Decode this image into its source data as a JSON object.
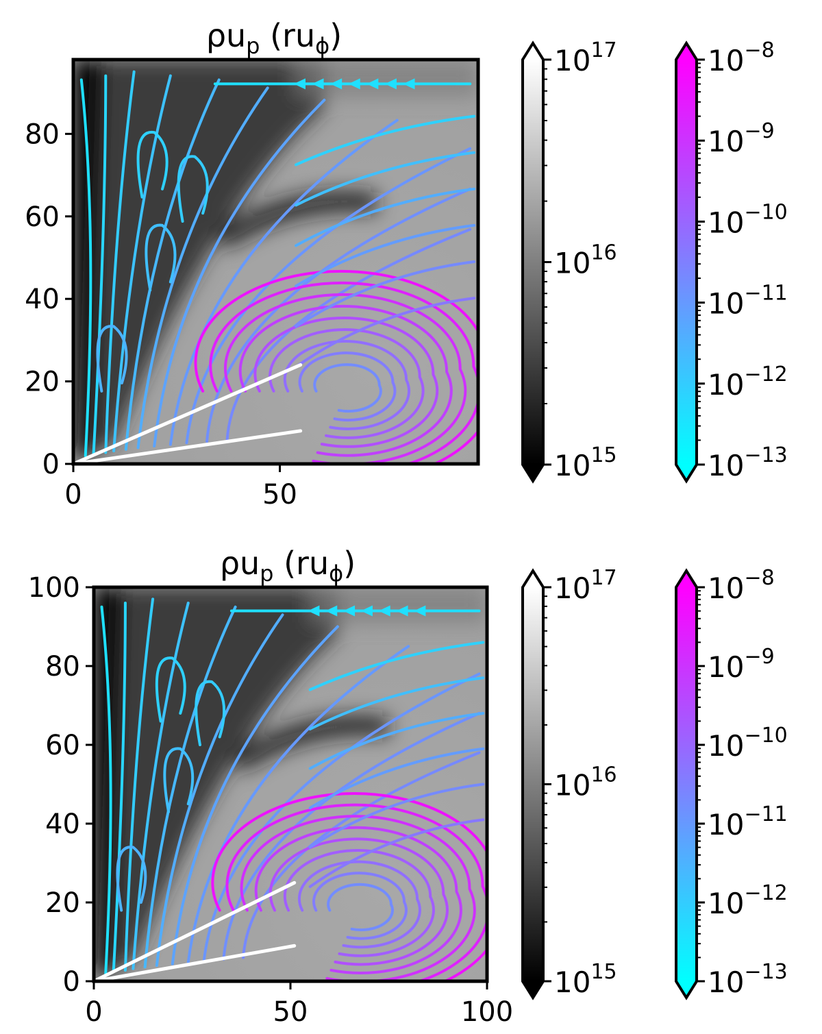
{
  "chart_data": [
    {
      "type": "heatmap",
      "title": "ρuₚ (ruᵠ)",
      "title_parts": {
        "rho_u": "ρu",
        "sub_p": "p",
        "lparen_r_u": "(ru",
        "sub_phi": "ϕ",
        "rparen": ")"
      },
      "xlabel": "",
      "ylabel": "",
      "xlim": [
        0,
        98
      ],
      "ylim": [
        0,
        98
      ],
      "xticks": [
        "0",
        "50"
      ],
      "yticks": [
        "0",
        "20",
        "40",
        "60",
        "80"
      ],
      "background_colorbar": {
        "colormap": "gray",
        "scale": "log",
        "range_exp": [
          15,
          17
        ],
        "ticks": [
          {
            "base": "10",
            "exp": "17"
          },
          {
            "base": "10",
            "exp": "16"
          },
          {
            "base": "10",
            "exp": "15"
          }
        ]
      },
      "streamline_colorbar": {
        "colormap": "cool",
        "scale": "log",
        "range_exp": [
          -13,
          -8
        ],
        "ticks": [
          {
            "base": "10",
            "exp": "−8"
          },
          {
            "base": "10",
            "exp": "−9"
          },
          {
            "base": "10",
            "exp": "−10"
          },
          {
            "base": "10",
            "exp": "−11"
          },
          {
            "base": "10",
            "exp": "−12"
          },
          {
            "base": "10",
            "exp": "−13"
          }
        ]
      },
      "white_lines": [
        {
          "x": [
            0,
            55
          ],
          "y": [
            0,
            24
          ]
        },
        {
          "x": [
            0,
            55
          ],
          "y": [
            0,
            8
          ]
        }
      ]
    },
    {
      "type": "heatmap",
      "title": "ρuₚ (ruᵠ)",
      "title_parts": {
        "rho_u": "ρu",
        "sub_p": "p",
        "lparen_r_u": "(ru",
        "sub_phi": "ϕ",
        "rparen": ")"
      },
      "xlabel": "",
      "ylabel": "",
      "xlim": [
        0,
        100
      ],
      "ylim": [
        0,
        100
      ],
      "xticks": [
        "0",
        "50",
        "100"
      ],
      "yticks": [
        "0",
        "20",
        "40",
        "60",
        "80",
        "100"
      ],
      "background_colorbar": {
        "colormap": "gray",
        "scale": "log",
        "range_exp": [
          15,
          17
        ],
        "ticks": [
          {
            "base": "10",
            "exp": "17"
          },
          {
            "base": "10",
            "exp": "16"
          },
          {
            "base": "10",
            "exp": "15"
          }
        ]
      },
      "streamline_colorbar": {
        "colormap": "cool",
        "scale": "log",
        "range_exp": [
          -13,
          -8
        ],
        "ticks": [
          {
            "base": "10",
            "exp": "−8"
          },
          {
            "base": "10",
            "exp": "−9"
          },
          {
            "base": "10",
            "exp": "−10"
          },
          {
            "base": "10",
            "exp": "−11"
          },
          {
            "base": "10",
            "exp": "−12"
          },
          {
            "base": "10",
            "exp": "−13"
          }
        ]
      },
      "white_lines": [
        {
          "x": [
            0,
            51
          ],
          "y": [
            0,
            25
          ]
        },
        {
          "x": [
            0,
            51
          ],
          "y": [
            0,
            9
          ]
        }
      ]
    }
  ]
}
